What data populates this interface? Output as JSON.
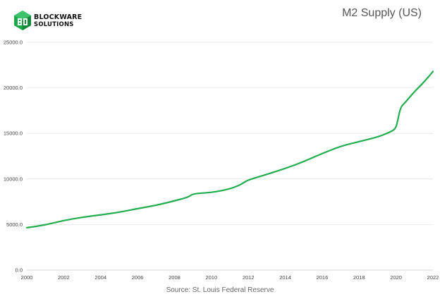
{
  "brand": {
    "line1": "BLOCKWARE",
    "line2": "SOLUTIONS",
    "logo_icon": "blockware-cube-logo-icon",
    "color": "#1aa84a"
  },
  "colors": {
    "line": "#22ad4f",
    "grid": "#e3e3e3",
    "axis": "#c8c8c8"
  },
  "chart_data": {
    "type": "line",
    "title": "M2 Supply (US)",
    "source": "Source: St. Louis Federal Reserve",
    "xlim": [
      2000,
      2022
    ],
    "ylim": [
      0,
      25000
    ],
    "y_ticks": [
      "25000.0",
      "20000.0",
      "15000.0",
      "10000.0",
      "5000.0",
      "0.0"
    ],
    "x_ticks": [
      "2000",
      "2002",
      "2004",
      "2006",
      "2008",
      "2010",
      "2012",
      "2014",
      "2016",
      "2018",
      "2020",
      "2022"
    ],
    "grid": true,
    "series": [
      {
        "x": [
          2000,
          2001,
          2002,
          2003,
          2004,
          2005,
          2006,
          2007,
          2008,
          2008.75,
          2009,
          2010,
          2011,
          2011.5,
          2011.75,
          2012,
          2013,
          2014,
          2015,
          2016,
          2017,
          2018,
          2019,
          2019.75,
          2020,
          2020.1,
          2020.25,
          2020.5,
          2021,
          2021.5,
          2022
        ],
        "y": [
          4650,
          4950,
          5450,
          5800,
          6050,
          6350,
          6750,
          7100,
          7600,
          8000,
          8400,
          8500,
          8900,
          9300,
          9600,
          9900,
          10500,
          11150,
          11900,
          12800,
          13600,
          14100,
          14600,
          15200,
          15600,
          16500,
          17900,
          18400,
          19600,
          20600,
          21800
        ]
      }
    ]
  }
}
